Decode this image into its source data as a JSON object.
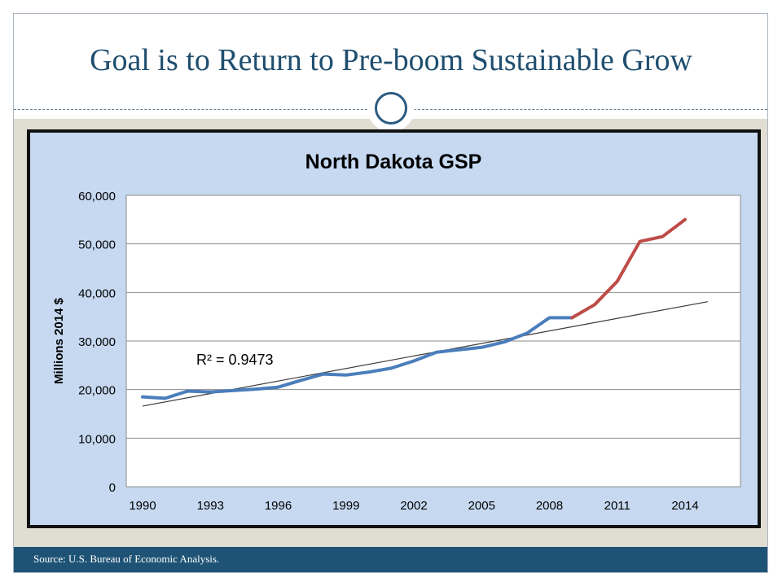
{
  "slide": {
    "title": "Goal is to Return to Pre-boom Sustainable Grow",
    "source": "Source: U.S. Bureau of Economic Analysis."
  },
  "colors": {
    "title": "#1f4e6f",
    "panel_background": "#c6d9f1",
    "footer": "#1f5376",
    "pre_boom_series": "#4a7ebb",
    "boom_series": "#be4b48",
    "trendline": "#3a3a3a"
  },
  "chart_data": {
    "type": "line",
    "title": "North Dakota GSP",
    "xlabel": "",
    "ylabel": "Millions 2014 $",
    "xlim": [
      1990,
      2015
    ],
    "ylim": [
      0,
      60000
    ],
    "x_ticks": [
      1990,
      1993,
      1996,
      1999,
      2002,
      2005,
      2008,
      2011,
      2014
    ],
    "x_tick_labels": [
      "1990",
      "1993",
      "1996",
      "1999",
      "2002",
      "2005",
      "2008",
      "2011",
      "2014"
    ],
    "y_ticks": [
      0,
      10000,
      20000,
      30000,
      40000,
      50000,
      60000
    ],
    "y_tick_labels": [
      "0",
      "10,000",
      "20,000",
      "30,000",
      "40,000",
      "50,000",
      "60,000"
    ],
    "grid": "horizontal",
    "series": [
      {
        "x": [
          1990,
          1991,
          1992,
          1993,
          1994,
          1995,
          1996,
          1997,
          1998,
          1999,
          2000,
          2001,
          2002,
          2003,
          2004,
          2005,
          2006,
          2007,
          2008,
          2009
        ],
        "values": [
          18500,
          18200,
          19700,
          19500,
          19800,
          20100,
          20500,
          21900,
          23200,
          23000,
          23600,
          24400,
          25900,
          27700,
          28200,
          28700,
          29800,
          31600,
          34800,
          34800
        ]
      },
      {
        "x": [
          2009,
          2010,
          2011,
          2012,
          2013,
          2014
        ],
        "values": [
          34800,
          37500,
          42300,
          50500,
          51500,
          55000
        ]
      }
    ],
    "trendline": {
      "x": [
        1990,
        2015
      ],
      "values": [
        16600,
        38100
      ],
      "label": "R² = 0.9473"
    }
  }
}
